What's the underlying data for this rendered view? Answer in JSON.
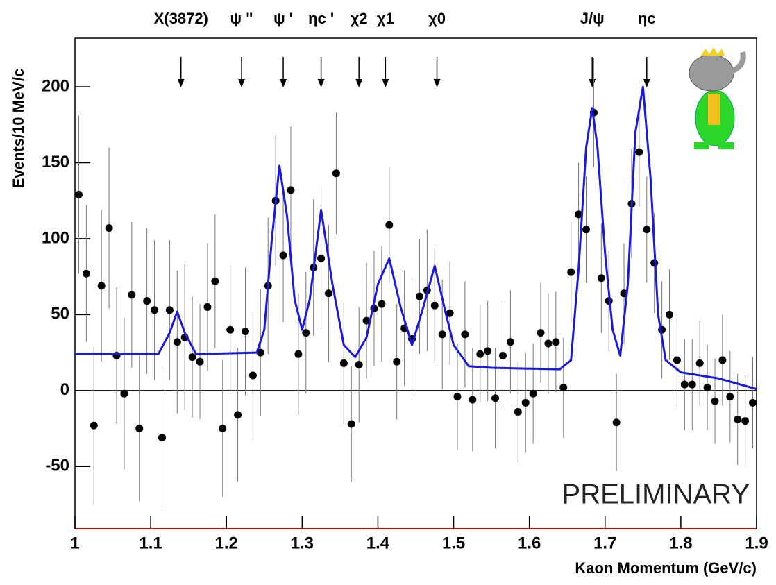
{
  "chart_data": {
    "type": "scatter",
    "x_label": "Kaon Momentum (GeV/c)",
    "y_label": "Events/10 MeV/c",
    "watermark": "PRELIMINARY",
    "xlim": [
      1,
      1.9
    ],
    "ylim": [
      -91,
      232
    ],
    "xticks": [
      1,
      1.1,
      1.2,
      1.3,
      1.4,
      1.5,
      1.6,
      1.7,
      1.8,
      1.9
    ],
    "yticks": [
      -50,
      0,
      50,
      100,
      150,
      200
    ],
    "annotations": [
      {
        "label": "X(3872)",
        "x": 1.14
      },
      {
        "label": "ψ \"",
        "x": 1.22
      },
      {
        "label": "ψ '",
        "x": 1.275
      },
      {
        "label": "ηc '",
        "x": 1.325
      },
      {
        "label": "χ2",
        "x": 1.375
      },
      {
        "label": "χ1",
        "x": 1.41
      },
      {
        "label": "χ0",
        "x": 1.478
      },
      {
        "label": "J/ψ",
        "x": 1.683
      },
      {
        "label": "ηc",
        "x": 1.755
      }
    ],
    "series": [
      {
        "color": "#000000",
        "x": [
          1.005,
          1.015,
          1.025,
          1.035,
          1.045,
          1.055,
          1.065,
          1.075,
          1.085,
          1.095,
          1.105,
          1.115,
          1.125,
          1.135,
          1.145,
          1.155,
          1.165,
          1.175,
          1.185,
          1.195,
          1.205,
          1.215,
          1.225,
          1.235,
          1.245,
          1.255,
          1.265,
          1.275,
          1.285,
          1.295,
          1.305,
          1.315,
          1.325,
          1.335,
          1.345,
          1.355,
          1.365,
          1.375,
          1.385,
          1.395,
          1.405,
          1.415,
          1.425,
          1.435,
          1.445,
          1.455,
          1.465,
          1.475,
          1.485,
          1.495,
          1.505,
          1.515,
          1.525,
          1.535,
          1.545,
          1.555,
          1.565,
          1.575,
          1.585,
          1.595,
          1.605,
          1.615,
          1.625,
          1.635,
          1.645,
          1.655,
          1.665,
          1.675,
          1.685,
          1.695,
          1.705,
          1.715,
          1.725,
          1.735,
          1.745,
          1.755,
          1.765,
          1.775,
          1.785,
          1.795,
          1.805,
          1.815,
          1.825,
          1.835,
          1.845,
          1.855,
          1.865,
          1.875,
          1.885,
          1.895
        ],
        "values": [
          129,
          77,
          -23,
          69,
          107,
          23,
          -2,
          63,
          -25,
          59,
          53,
          -31,
          53,
          32,
          35,
          22,
          19,
          55,
          72,
          -25,
          40,
          -16,
          39,
          10,
          25,
          69,
          125,
          89,
          132,
          24,
          38,
          81,
          87,
          64,
          143,
          18,
          -22,
          17,
          46,
          54,
          57,
          109,
          19,
          41,
          34,
          62,
          66,
          56,
          37,
          51,
          -4,
          37,
          -6,
          24,
          26,
          -5,
          23,
          32,
          -14,
          -8,
          -2,
          38,
          31,
          32,
          2,
          78,
          116,
          106,
          183,
          74,
          59,
          -21,
          64,
          123,
          157,
          106,
          84,
          40,
          50,
          20,
          4,
          4,
          18,
          2,
          -7,
          20,
          -4,
          -19,
          -20,
          -8
        ],
        "errors": [
          52,
          45,
          52,
          50,
          53,
          45,
          50,
          48,
          48,
          48,
          46,
          46,
          46,
          47,
          48,
          40,
          38,
          42,
          44,
          45,
          42,
          44,
          42,
          42,
          42,
          45,
          43,
          44,
          42,
          40,
          40,
          45,
          46,
          45,
          40,
          40,
          38,
          38,
          38,
          38,
          38,
          38,
          38,
          38,
          38,
          38,
          40,
          38,
          36,
          34,
          35,
          35,
          34,
          32,
          33,
          33,
          34,
          34,
          33,
          33,
          33,
          33,
          33,
          33,
          33,
          33,
          34,
          35,
          36,
          36,
          33,
          32,
          33,
          36,
          36,
          35,
          33,
          32,
          30,
          30,
          30,
          30,
          28,
          28,
          28,
          30,
          30,
          30,
          30,
          30
        ]
      },
      {
        "type": "line",
        "color": "#1a1adc",
        "x": [
          1.0,
          1.11,
          1.125,
          1.135,
          1.145,
          1.16,
          1.24,
          1.25,
          1.26,
          1.27,
          1.28,
          1.29,
          1.3,
          1.31,
          1.325,
          1.34,
          1.355,
          1.37,
          1.385,
          1.4,
          1.415,
          1.43,
          1.445,
          1.46,
          1.475,
          1.49,
          1.5,
          1.52,
          1.55,
          1.64,
          1.655,
          1.665,
          1.675,
          1.683,
          1.69,
          1.7,
          1.71,
          1.72,
          1.73,
          1.74,
          1.75,
          1.76,
          1.77,
          1.78,
          1.8,
          1.85,
          1.9
        ],
        "values": [
          24,
          24,
          38,
          52,
          38,
          24,
          25,
          40,
          100,
          148,
          115,
          60,
          40,
          60,
          119,
          70,
          30,
          22,
          35,
          70,
          87,
          55,
          30,
          55,
          82,
          50,
          30,
          16,
          15,
          14,
          20,
          80,
          160,
          186,
          160,
          90,
          40,
          23,
          70,
          170,
          200,
          140,
          50,
          20,
          12,
          8,
          1
        ]
      }
    ]
  }
}
